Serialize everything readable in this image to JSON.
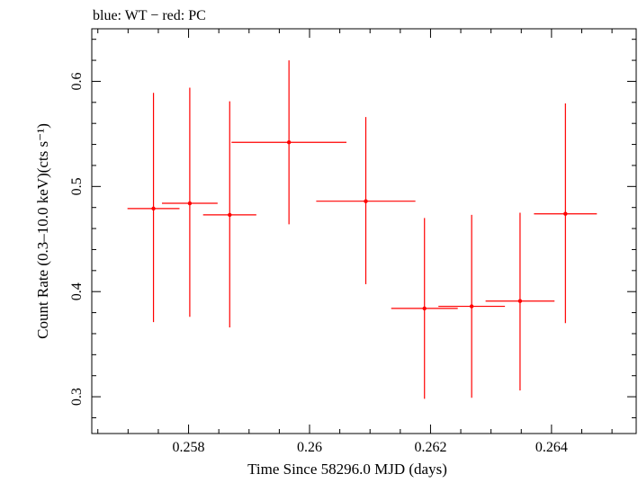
{
  "chart_data": {
    "type": "scatter",
    "title": "blue: WT − red: PC",
    "xlabel": "Time Since 58296.0 MJD (days)",
    "ylabel": "Count Rate (0.3–10.0 keV)(cts s⁻¹)",
    "xlim": [
      0.2564,
      0.2654
    ],
    "ylim": [
      0.265,
      0.65
    ],
    "xticks": [
      {
        "value": 0.258,
        "label": "0.258"
      },
      {
        "value": 0.26,
        "label": "0.26"
      },
      {
        "value": 0.262,
        "label": "0.262"
      },
      {
        "value": 0.264,
        "label": "0.264"
      }
    ],
    "yticks": [
      {
        "value": 0.3,
        "label": "0.3"
      },
      {
        "value": 0.4,
        "label": "0.4"
      },
      {
        "value": 0.5,
        "label": "0.5"
      },
      {
        "value": 0.6,
        "label": "0.6"
      }
    ],
    "grid": false,
    "series": [
      {
        "color": "#ff0000",
        "points": [
          {
            "x": 0.25742,
            "y": 0.479,
            "xerr": 0.00043,
            "ylo": 0.371,
            "yhi": 0.589
          },
          {
            "x": 0.25802,
            "y": 0.484,
            "xerr": 0.00046,
            "ylo": 0.376,
            "yhi": 0.594
          },
          {
            "x": 0.25868,
            "y": 0.473,
            "xerr": 0.00044,
            "ylo": 0.366,
            "yhi": 0.581
          },
          {
            "x": 0.25966,
            "y": 0.542,
            "xerr": 0.00095,
            "ylo": 0.464,
            "yhi": 0.62
          },
          {
            "x": 0.26093,
            "y": 0.486,
            "xerr": 0.00082,
            "ylo": 0.407,
            "yhi": 0.566
          },
          {
            "x": 0.2619,
            "y": 0.384,
            "xerr": 0.00055,
            "ylo": 0.298,
            "yhi": 0.47
          },
          {
            "x": 0.26268,
            "y": 0.386,
            "xerr": 0.00055,
            "ylo": 0.299,
            "yhi": 0.473
          },
          {
            "x": 0.26348,
            "y": 0.391,
            "xerr": 0.00057,
            "ylo": 0.306,
            "yhi": 0.475
          },
          {
            "x": 0.26423,
            "y": 0.474,
            "xerr": 0.00052,
            "ylo": 0.37,
            "yhi": 0.579
          }
        ]
      }
    ]
  }
}
